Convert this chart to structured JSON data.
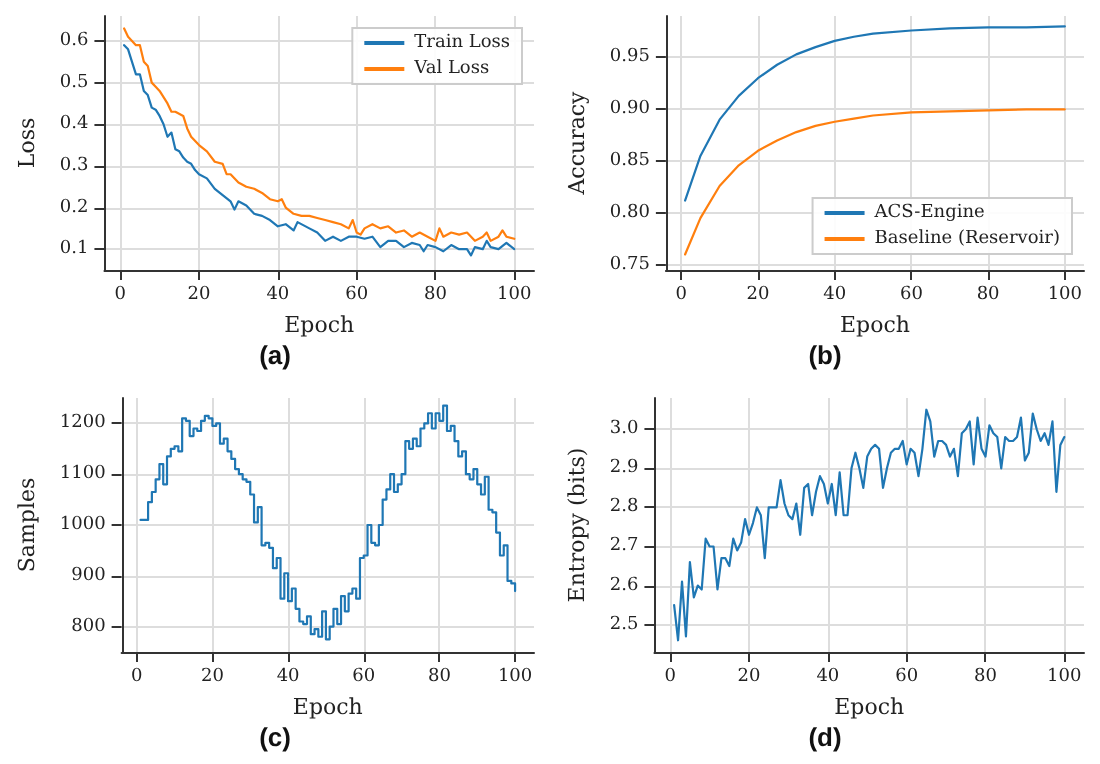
{
  "chart_data": [
    {
      "type": "line",
      "title": "(a)",
      "xlabel": "Epoch",
      "ylabel": "Loss",
      "xlim": [
        -4,
        105
      ],
      "xticks": [
        0,
        20,
        40,
        60,
        80,
        100
      ],
      "ylim": [
        0.05,
        0.66
      ],
      "yticks": [
        0.1,
        0.2,
        0.3,
        0.4,
        0.5,
        0.6
      ],
      "grid": true,
      "legend": "top right",
      "series": [
        {
          "name": "Train Loss",
          "color": "#1f77b4",
          "x": [
            1,
            2,
            3,
            4,
            5,
            6,
            7,
            8,
            9,
            10,
            11,
            12,
            13,
            14,
            15,
            16,
            17,
            18,
            19,
            20,
            22,
            24,
            26,
            28,
            29,
            30,
            32,
            34,
            36,
            38,
            40,
            42,
            44,
            45,
            48,
            50,
            52,
            54,
            56,
            58,
            60,
            62,
            64,
            66,
            68,
            70,
            72,
            74,
            76,
            77,
            78,
            80,
            82,
            84,
            86,
            88,
            89,
            90,
            92,
            93,
            94,
            96,
            98,
            100
          ],
          "values": [
            0.59,
            0.58,
            0.55,
            0.52,
            0.52,
            0.48,
            0.47,
            0.44,
            0.435,
            0.42,
            0.4,
            0.37,
            0.38,
            0.34,
            0.335,
            0.32,
            0.31,
            0.305,
            0.29,
            0.28,
            0.27,
            0.245,
            0.23,
            0.215,
            0.195,
            0.215,
            0.205,
            0.185,
            0.18,
            0.17,
            0.155,
            0.16,
            0.145,
            0.165,
            0.15,
            0.14,
            0.12,
            0.13,
            0.12,
            0.13,
            0.13,
            0.125,
            0.13,
            0.105,
            0.12,
            0.12,
            0.105,
            0.115,
            0.11,
            0.095,
            0.11,
            0.105,
            0.095,
            0.11,
            0.1,
            0.1,
            0.085,
            0.105,
            0.1,
            0.12,
            0.105,
            0.1,
            0.115,
            0.1
          ]
        },
        {
          "name": "Val Loss",
          "color": "#ff7f0e",
          "x": [
            1,
            2,
            3,
            4,
            5,
            6,
            7,
            8,
            9,
            10,
            12,
            13,
            14,
            16,
            17,
            18,
            20,
            22,
            24,
            26,
            27,
            28,
            30,
            32,
            34,
            36,
            38,
            40,
            41,
            42,
            44,
            46,
            48,
            50,
            52,
            54,
            56,
            58,
            59,
            60,
            61,
            62,
            64,
            66,
            68,
            70,
            72,
            74,
            76,
            78,
            80,
            81,
            82,
            84,
            86,
            88,
            90,
            92,
            93,
            94,
            96,
            97,
            98,
            100
          ],
          "values": [
            0.63,
            0.61,
            0.6,
            0.59,
            0.59,
            0.55,
            0.54,
            0.5,
            0.49,
            0.48,
            0.45,
            0.43,
            0.43,
            0.42,
            0.39,
            0.37,
            0.35,
            0.335,
            0.31,
            0.305,
            0.28,
            0.28,
            0.26,
            0.25,
            0.245,
            0.235,
            0.22,
            0.215,
            0.22,
            0.2,
            0.185,
            0.18,
            0.18,
            0.175,
            0.17,
            0.165,
            0.16,
            0.15,
            0.17,
            0.14,
            0.135,
            0.15,
            0.16,
            0.15,
            0.155,
            0.14,
            0.145,
            0.13,
            0.14,
            0.13,
            0.12,
            0.15,
            0.13,
            0.14,
            0.135,
            0.14,
            0.12,
            0.13,
            0.14,
            0.12,
            0.13,
            0.145,
            0.13,
            0.125
          ]
        }
      ]
    },
    {
      "type": "line",
      "title": "(b)",
      "xlabel": "Epoch",
      "ylabel": "Accuracy",
      "xlim": [
        -4,
        105
      ],
      "xticks": [
        0,
        20,
        40,
        60,
        80,
        100
      ],
      "ylim": [
        0.745,
        0.99
      ],
      "yticks": [
        0.75,
        {
          "value": 0.8,
          "label": "0.80"
        },
        0.85,
        {
          "value": 0.9,
          "label": "0.90"
        },
        0.95
      ],
      "grid": true,
      "legend": "bottom right",
      "series": [
        {
          "name": "ACS-Engine",
          "color": "#1f77b4",
          "x": [
            1,
            5,
            10,
            15,
            20,
            25,
            30,
            35,
            40,
            45,
            50,
            60,
            70,
            80,
            90,
            100
          ],
          "values": [
            0.812,
            0.855,
            0.89,
            0.913,
            0.93,
            0.943,
            0.953,
            0.96,
            0.966,
            0.97,
            0.973,
            0.976,
            0.978,
            0.979,
            0.979,
            0.98
          ]
        },
        {
          "name": "Baseline (Reservoir)",
          "color": "#ff7f0e",
          "x": [
            1,
            5,
            10,
            15,
            20,
            25,
            30,
            35,
            40,
            45,
            50,
            60,
            70,
            80,
            90,
            100
          ],
          "values": [
            0.76,
            0.795,
            0.826,
            0.846,
            0.86,
            0.87,
            0.878,
            0.884,
            0.888,
            0.891,
            0.894,
            0.897,
            0.898,
            0.899,
            0.9,
            0.9
          ]
        }
      ]
    },
    {
      "type": "step",
      "title": "(c)",
      "xlabel": "Epoch",
      "ylabel": "Samples",
      "xlim": [
        -4,
        105
      ],
      "xticks": [
        0,
        20,
        40,
        60,
        80,
        100
      ],
      "ylim": [
        750,
        1250
      ],
      "yticks": [
        800,
        900,
        1000,
        1100,
        1200
      ],
      "grid": true,
      "series": [
        {
          "color": "#1f77b4",
          "x": [
            1,
            3,
            4,
            5,
            6,
            7,
            8,
            9,
            10,
            11,
            12,
            13,
            14,
            15,
            16,
            17,
            18,
            19,
            20,
            21,
            22,
            23,
            24,
            25,
            26,
            27,
            28,
            29,
            30,
            31,
            32,
            33,
            34,
            35,
            36,
            37,
            38,
            39,
            40,
            41,
            42,
            43,
            44,
            45,
            46,
            47,
            48,
            49,
            50,
            51,
            52,
            53,
            54,
            55,
            56,
            57,
            58,
            59,
            60,
            61,
            62,
            63,
            64,
            65,
            66,
            67,
            68,
            69,
            70,
            71,
            72,
            73,
            74,
            75,
            76,
            77,
            78,
            79,
            80,
            81,
            82,
            83,
            84,
            85,
            86,
            87,
            88,
            89,
            90,
            91,
            92,
            93,
            94,
            95,
            96,
            97,
            98,
            99,
            100
          ],
          "values": [
            1010,
            1045,
            1065,
            1090,
            1120,
            1080,
            1135,
            1150,
            1155,
            1145,
            1210,
            1205,
            1175,
            1190,
            1185,
            1205,
            1215,
            1210,
            1195,
            1200,
            1160,
            1170,
            1145,
            1130,
            1110,
            1100,
            1090,
            1085,
            1060,
            1005,
            1035,
            960,
            965,
            955,
            915,
            935,
            855,
            905,
            850,
            875,
            835,
            810,
            805,
            820,
            785,
            795,
            780,
            830,
            775,
            800,
            835,
            805,
            860,
            830,
            865,
            875,
            855,
            935,
            940,
            1000,
            965,
            960,
            1000,
            1050,
            1070,
            1100,
            1065,
            1080,
            1100,
            1165,
            1150,
            1170,
            1155,
            1190,
            1200,
            1220,
            1190,
            1220,
            1205,
            1235,
            1185,
            1195,
            1165,
            1135,
            1145,
            1100,
            1090,
            1110,
            1080,
            1060,
            1095,
            1030,
            1025,
            985,
            940,
            960,
            890,
            885,
            870
          ]
        }
      ]
    },
    {
      "type": "line",
      "title": "(d)",
      "xlabel": "Epoch",
      "ylabel": "Entropy (bits)",
      "xlim": [
        -4,
        105
      ],
      "xticks": [
        0,
        20,
        40,
        60,
        80,
        100
      ],
      "ylim": [
        2.43,
        3.08
      ],
      "yticks": [
        2.5,
        2.6,
        2.7,
        2.8,
        2.9,
        {
          "value": 3,
          "label": "3.0"
        }
      ],
      "grid": true,
      "series": [
        {
          "color": "#1f77b4",
          "x": [
            1,
            2,
            3,
            4,
            5,
            6,
            7,
            8,
            9,
            10,
            11,
            12,
            13,
            14,
            15,
            16,
            17,
            18,
            19,
            20,
            21,
            22,
            23,
            24,
            25,
            26,
            27,
            28,
            29,
            30,
            31,
            32,
            33,
            34,
            35,
            36,
            37,
            38,
            39,
            40,
            41,
            42,
            43,
            44,
            45,
            46,
            47,
            48,
            49,
            50,
            51,
            52,
            53,
            54,
            55,
            56,
            57,
            58,
            59,
            60,
            61,
            62,
            63,
            64,
            65,
            66,
            67,
            68,
            69,
            70,
            71,
            72,
            73,
            74,
            75,
            76,
            77,
            78,
            79,
            80,
            81,
            82,
            83,
            84,
            85,
            86,
            87,
            88,
            89,
            90,
            91,
            92,
            93,
            94,
            95,
            96,
            97,
            98,
            99,
            100
          ],
          "values": [
            2.55,
            2.46,
            2.61,
            2.47,
            2.66,
            2.57,
            2.6,
            2.59,
            2.72,
            2.7,
            2.7,
            2.59,
            2.67,
            2.67,
            2.65,
            2.72,
            2.69,
            2.71,
            2.77,
            2.73,
            2.76,
            2.8,
            2.78,
            2.67,
            2.8,
            2.8,
            2.8,
            2.87,
            2.81,
            2.78,
            2.77,
            2.81,
            2.73,
            2.85,
            2.86,
            2.78,
            2.84,
            2.88,
            2.86,
            2.81,
            2.86,
            2.78,
            2.89,
            2.78,
            2.78,
            2.9,
            2.94,
            2.9,
            2.85,
            2.93,
            2.95,
            2.96,
            2.95,
            2.85,
            2.9,
            2.94,
            2.95,
            2.95,
            2.97,
            2.91,
            2.95,
            2.94,
            2.88,
            2.95,
            3.05,
            3.02,
            2.93,
            2.97,
            2.97,
            2.96,
            2.93,
            2.95,
            2.88,
            2.99,
            3.0,
            3.02,
            2.91,
            3.03,
            2.95,
            2.93,
            3.01,
            2.99,
            2.98,
            2.9,
            2.98,
            2.97,
            2.97,
            2.98,
            3.03,
            2.92,
            2.94,
            3.04,
            3.0,
            2.97,
            2.99,
            2.96,
            3.02,
            2.84,
            2.96,
            2.98
          ]
        }
      ]
    }
  ]
}
